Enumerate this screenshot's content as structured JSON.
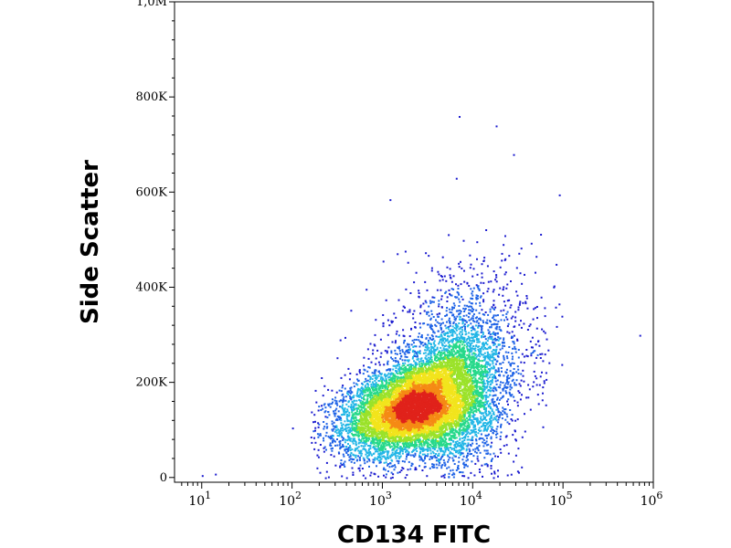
{
  "chart_data": {
    "type": "scatter",
    "style": "density-colored flow cytometry dot plot",
    "title": "",
    "xlabel": "CD134 FITC",
    "ylabel": "Side Scatter",
    "x_scale": "log",
    "xlim": [
      5,
      1000000
    ],
    "ylim": [
      -10000,
      1000000
    ],
    "grid": false,
    "x_ticks": [
      {
        "value": 10,
        "base": "10",
        "exp": "1"
      },
      {
        "value": 100,
        "base": "10",
        "exp": "2"
      },
      {
        "value": 1000,
        "base": "10",
        "exp": "3"
      },
      {
        "value": 10000,
        "base": "10",
        "exp": "4"
      },
      {
        "value": 100000,
        "base": "10",
        "exp": "5"
      },
      {
        "value": 1000000,
        "base": "10",
        "exp": "6"
      }
    ],
    "y_ticks": [
      {
        "value": 0,
        "label": "0"
      },
      {
        "value": 200000,
        "label": "200K"
      },
      {
        "value": 400000,
        "label": "400K"
      },
      {
        "value": 600000,
        "label": "600K"
      },
      {
        "value": 800000,
        "label": "800K"
      },
      {
        "value": 1000000,
        "label": "1,0M"
      }
    ],
    "density_colors": [
      "#1c1ccf",
      "#1f63e6",
      "#22b6e6",
      "#26d98a",
      "#9be22a",
      "#f2e41c",
      "#f58a14",
      "#e0221b"
    ],
    "populations": [
      {
        "x_center": 2500,
        "y_center": 150000,
        "count": 9000
      },
      {
        "x_center": 6000,
        "y_center": 230000,
        "count": 2200
      }
    ],
    "outliers": [
      {
        "x": 10,
        "y": 5000
      },
      {
        "x": 14,
        "y": 8000
      },
      {
        "x": 100,
        "y": 105000
      },
      {
        "x": 1200,
        "y": 585000
      },
      {
        "x": 7000,
        "y": 760000
      },
      {
        "x": 18000,
        "y": 740000
      },
      {
        "x": 6500,
        "y": 630000
      },
      {
        "x": 28000,
        "y": 680000
      },
      {
        "x": 700000,
        "y": 300000
      },
      {
        "x": 90000,
        "y": 595000
      }
    ]
  }
}
